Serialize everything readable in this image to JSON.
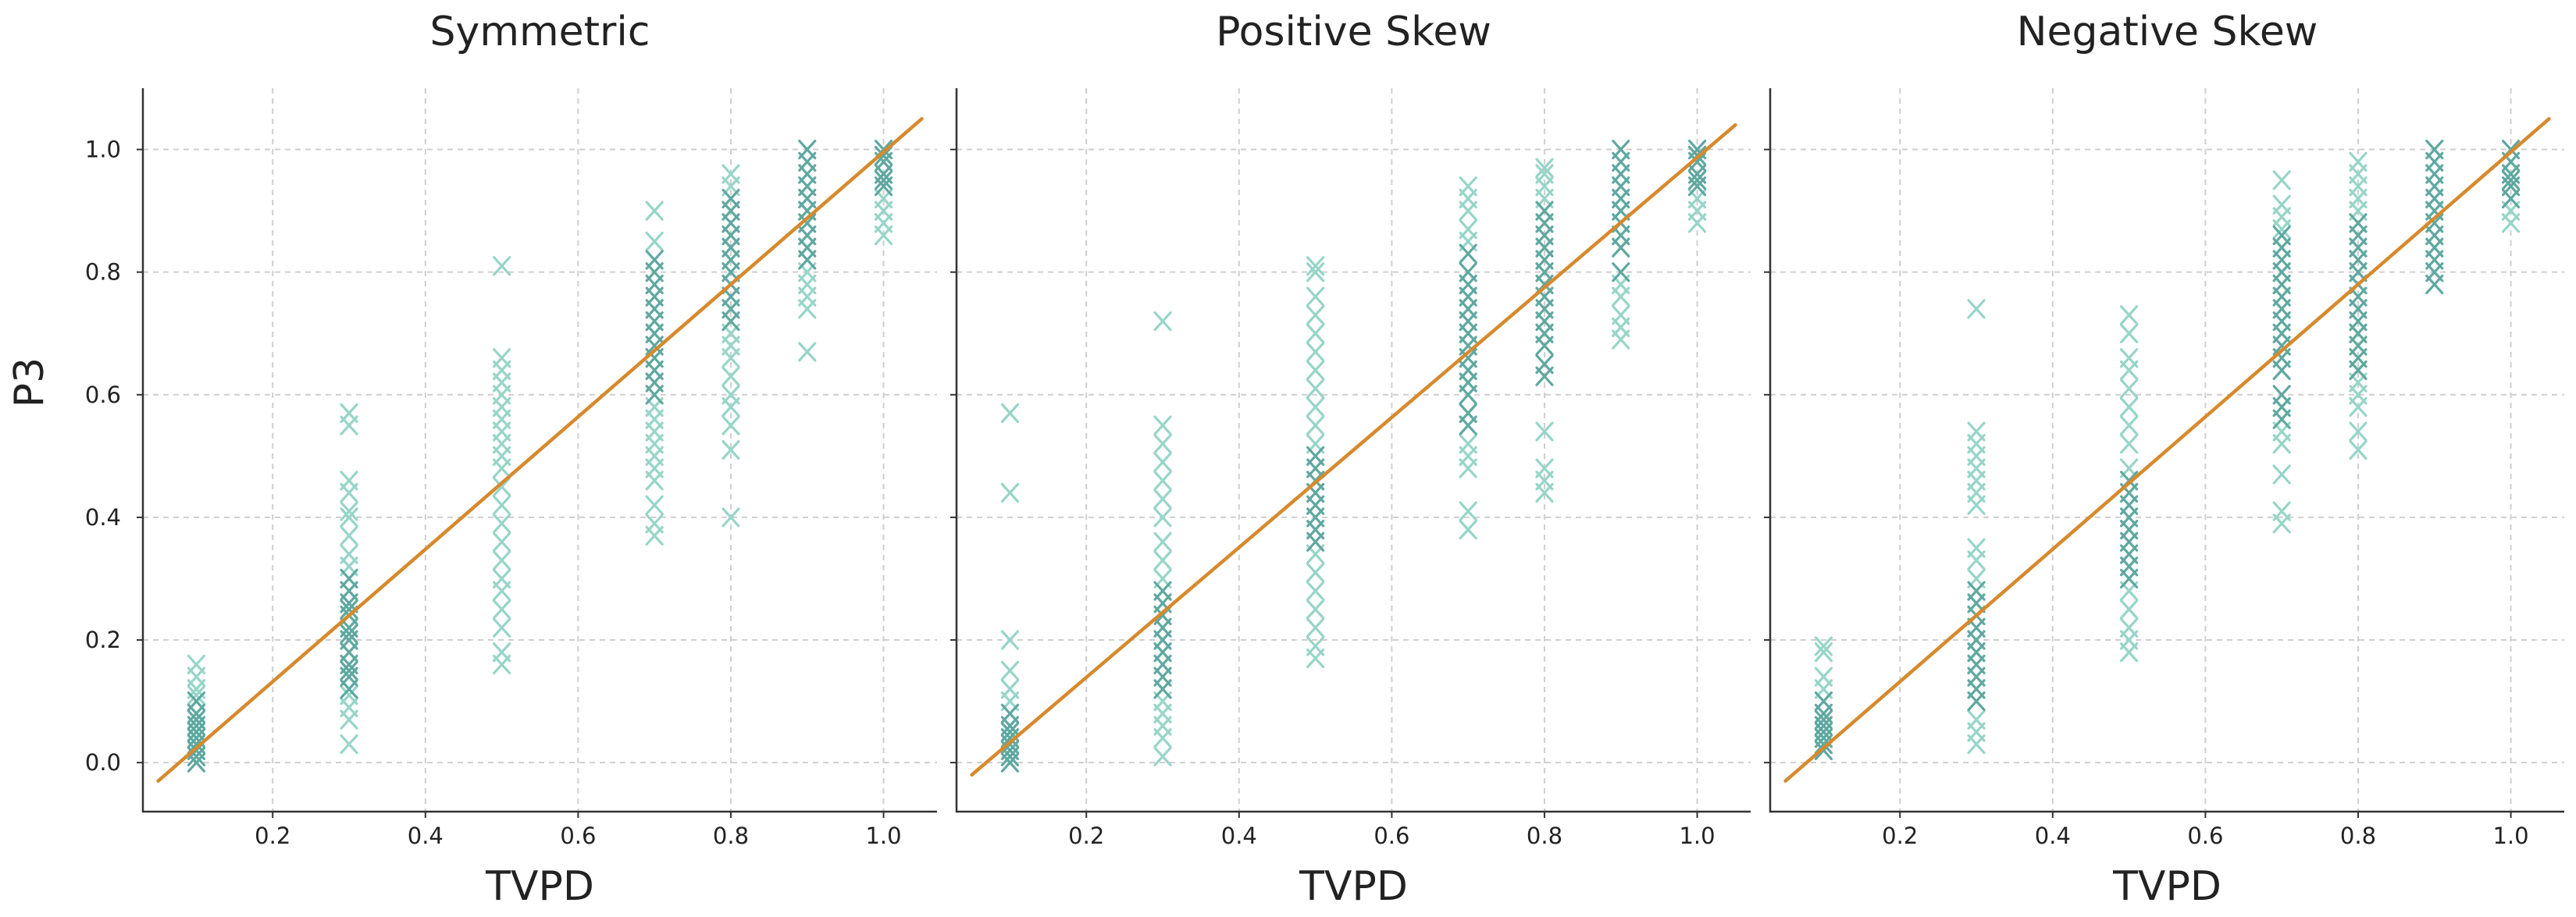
{
  "chart_data": {
    "type": "scatter",
    "ylabel": "P3",
    "xlabel": "TVPD",
    "xlim": [
      0.03,
      1.07
    ],
    "ylim": [
      -0.08,
      1.1
    ],
    "xticks": [
      0.2,
      0.4,
      0.6,
      0.8,
      1.0
    ],
    "yticks": [
      0.0,
      0.2,
      0.4,
      0.6,
      0.8,
      1.0
    ],
    "xtick_labels": [
      "0.2",
      "0.4",
      "0.6",
      "0.8",
      "1.0"
    ],
    "ytick_labels": [
      "0.0",
      "0.2",
      "0.4",
      "0.6",
      "0.8",
      "1.0"
    ],
    "grid": true,
    "marker": "x",
    "colors": {
      "dark": "#5fa8a0",
      "light": "#97d5c8",
      "fit": "#d68a2e"
    },
    "panels": [
      {
        "title": "Symmetric",
        "fit_line": {
          "x": [
            0.05,
            1.05
          ],
          "y": [
            -0.03,
            1.05
          ]
        },
        "groups": [
          {
            "x": 0.1,
            "dark": [
              0.0,
              0.02,
              0.04,
              0.06,
              0.08,
              0.1,
              0.03,
              0.05,
              0.07,
              0.01
            ],
            "light": [
              0.12,
              0.14,
              0.16,
              0.11
            ]
          },
          {
            "x": 0.3,
            "dark": [
              0.14,
              0.16,
              0.18,
              0.2,
              0.22,
              0.24,
              0.26,
              0.28,
              0.3,
              0.12,
              0.15,
              0.21,
              0.25
            ],
            "light": [
              0.03,
              0.07,
              0.09,
              0.11,
              0.32,
              0.34,
              0.37,
              0.4,
              0.41,
              0.44,
              0.46,
              0.55,
              0.57
            ]
          },
          {
            "x": 0.5,
            "dark": [],
            "light": [
              0.16,
              0.18,
              0.22,
              0.25,
              0.28,
              0.3,
              0.33,
              0.36,
              0.39,
              0.42,
              0.45,
              0.48,
              0.5,
              0.52,
              0.54,
              0.56,
              0.58,
              0.6,
              0.62,
              0.64,
              0.66,
              0.81
            ]
          },
          {
            "x": 0.7,
            "dark": [
              0.6,
              0.62,
              0.64,
              0.66,
              0.68,
              0.7,
              0.72,
              0.74,
              0.76,
              0.78,
              0.8,
              0.82
            ],
            "light": [
              0.37,
              0.39,
              0.42,
              0.46,
              0.48,
              0.5,
              0.52,
              0.54,
              0.56,
              0.58,
              0.85,
              0.9
            ]
          },
          {
            "x": 0.8,
            "dark": [
              0.72,
              0.74,
              0.76,
              0.78,
              0.8,
              0.82,
              0.84,
              0.86,
              0.88,
              0.9,
              0.92
            ],
            "light": [
              0.4,
              0.51,
              0.55,
              0.58,
              0.6,
              0.63,
              0.66,
              0.68,
              0.7,
              0.94,
              0.96
            ]
          },
          {
            "x": 0.9,
            "dark": [
              0.82,
              0.84,
              0.86,
              0.88,
              0.9,
              0.92,
              0.94,
              0.96,
              0.98,
              1.0
            ],
            "light": [
              0.67,
              0.74,
              0.76,
              0.78,
              0.8
            ]
          },
          {
            "x": 1.0,
            "dark": [
              0.94,
              0.96,
              0.98,
              1.0,
              0.95,
              0.99
            ],
            "light": [
              0.86,
              0.88,
              0.9,
              0.92
            ]
          }
        ]
      },
      {
        "title": "Positive Skew",
        "fit_line": {
          "x": [
            0.05,
            1.05
          ],
          "y": [
            -0.02,
            1.04
          ]
        },
        "groups": [
          {
            "x": 0.1,
            "dark": [
              0.0,
              0.01,
              0.02,
              0.04,
              0.06,
              0.08,
              0.03,
              0.05
            ],
            "light": [
              0.1,
              0.12,
              0.15,
              0.2,
              0.44,
              0.57
            ]
          },
          {
            "x": 0.3,
            "dark": [
              0.12,
              0.14,
              0.16,
              0.18,
              0.2,
              0.22,
              0.24,
              0.26,
              0.28
            ],
            "light": [
              0.01,
              0.04,
              0.06,
              0.08,
              0.1,
              0.3,
              0.33,
              0.36,
              0.4,
              0.43,
              0.46,
              0.49,
              0.52,
              0.55,
              0.72
            ]
          },
          {
            "x": 0.5,
            "dark": [
              0.36,
              0.38,
              0.4,
              0.42,
              0.44,
              0.46,
              0.48,
              0.5
            ],
            "light": [
              0.17,
              0.19,
              0.22,
              0.25,
              0.28,
              0.31,
              0.34,
              0.52,
              0.55,
              0.58,
              0.61,
              0.64,
              0.67,
              0.7,
              0.73,
              0.76,
              0.8,
              0.81
            ]
          },
          {
            "x": 0.7,
            "dark": [
              0.55,
              0.57,
              0.6,
              0.62,
              0.64,
              0.66,
              0.68,
              0.7,
              0.72,
              0.74,
              0.76,
              0.78,
              0.8,
              0.83
            ],
            "light": [
              0.38,
              0.41,
              0.48,
              0.5,
              0.52,
              0.85,
              0.87,
              0.9,
              0.92,
              0.94
            ]
          },
          {
            "x": 0.8,
            "dark": [
              0.63,
              0.65,
              0.68,
              0.7,
              0.72,
              0.74,
              0.76,
              0.78,
              0.8,
              0.82,
              0.84,
              0.86,
              0.88,
              0.9
            ],
            "light": [
              0.44,
              0.46,
              0.48,
              0.54,
              0.92,
              0.94,
              0.96,
              0.97
            ]
          },
          {
            "x": 0.9,
            "dark": [
              0.84,
              0.86,
              0.88,
              0.9,
              0.92,
              0.94,
              0.96,
              0.98,
              1.0,
              0.8
            ],
            "light": [
              0.69,
              0.71,
              0.73,
              0.76,
              0.78
            ]
          },
          {
            "x": 1.0,
            "dark": [
              0.94,
              0.96,
              0.98,
              1.0,
              0.95,
              0.99
            ],
            "light": [
              0.88,
              0.9,
              0.92
            ]
          }
        ]
      },
      {
        "title": "Negative Skew",
        "fit_line": {
          "x": [
            0.05,
            1.05
          ],
          "y": [
            -0.03,
            1.05
          ]
        },
        "groups": [
          {
            "x": 0.1,
            "dark": [
              0.02,
              0.04,
              0.06,
              0.08,
              0.1,
              0.03,
              0.05,
              0.07
            ],
            "light": [
              0.12,
              0.14,
              0.18,
              0.19
            ]
          },
          {
            "x": 0.3,
            "dark": [
              0.1,
              0.12,
              0.14,
              0.16,
              0.18,
              0.2,
              0.22,
              0.24,
              0.26,
              0.28
            ],
            "light": [
              0.03,
              0.05,
              0.07,
              0.3,
              0.33,
              0.35,
              0.42,
              0.44,
              0.46,
              0.48,
              0.5,
              0.52,
              0.54,
              0.74
            ]
          },
          {
            "x": 0.5,
            "dark": [
              0.3,
              0.32,
              0.34,
              0.36,
              0.38,
              0.4,
              0.42,
              0.44,
              0.46
            ],
            "light": [
              0.18,
              0.2,
              0.22,
              0.25,
              0.28,
              0.48,
              0.52,
              0.55,
              0.58,
              0.61,
              0.64,
              0.66,
              0.7,
              0.73
            ]
          },
          {
            "x": 0.7,
            "dark": [
              0.56,
              0.58,
              0.6,
              0.64,
              0.66,
              0.68,
              0.7,
              0.72,
              0.74,
              0.76,
              0.78,
              0.8,
              0.82,
              0.84,
              0.86
            ],
            "light": [
              0.39,
              0.41,
              0.47,
              0.52,
              0.54,
              0.87,
              0.89,
              0.91,
              0.95
            ]
          },
          {
            "x": 0.8,
            "dark": [
              0.64,
              0.66,
              0.68,
              0.7,
              0.72,
              0.74,
              0.76,
              0.78,
              0.8,
              0.82,
              0.84,
              0.86,
              0.88
            ],
            "light": [
              0.51,
              0.54,
              0.58,
              0.6,
              0.62,
              0.9,
              0.92,
              0.94,
              0.96,
              0.98
            ]
          },
          {
            "x": 0.9,
            "dark": [
              0.78,
              0.8,
              0.82,
              0.84,
              0.86,
              0.88,
              0.9,
              0.92,
              0.94,
              0.96,
              0.98,
              1.0
            ],
            "light": []
          },
          {
            "x": 1.0,
            "dark": [
              0.92,
              0.94,
              0.96,
              0.98,
              1.0,
              0.95
            ],
            "light": [
              0.88,
              0.9
            ]
          }
        ]
      }
    ]
  }
}
